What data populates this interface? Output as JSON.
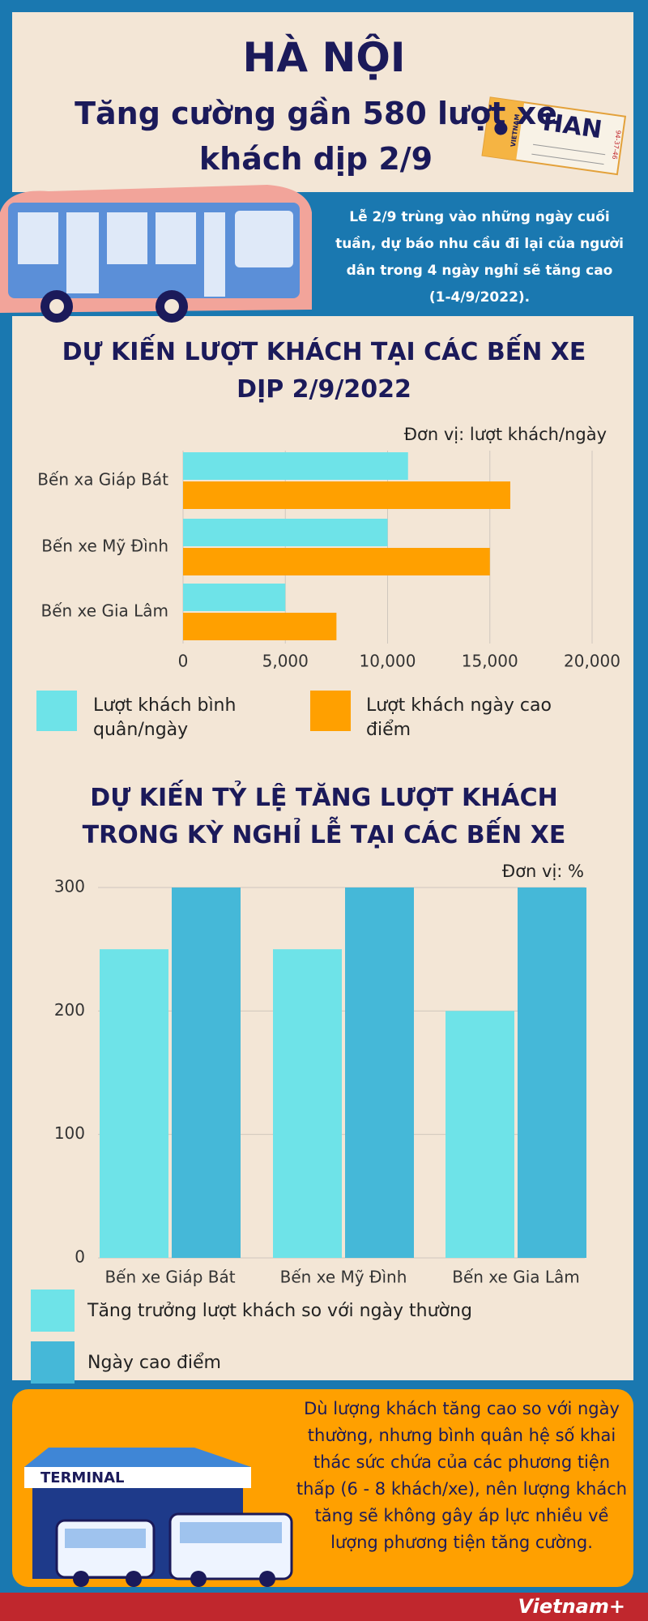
{
  "header": {
    "title": "HÀ NỘI",
    "subtitle": "Tăng cường gần 580 lượt xe khách dịp 2/9",
    "ticket_code": "HAN",
    "ticket_country": "VIETNAM",
    "ticket_number": "94-37-46"
  },
  "intro": "Lễ 2/9 trùng vào những ngày cuối tuần, dự báo nhu cầu đi lại của người dân trong 4 ngày nghỉ sẽ tăng cao (1-4/9/2022).",
  "chart_data": [
    {
      "type": "barh",
      "title": "DỰ KIẾN LƯỢT KHÁCH TẠI CÁC BẾN XE DỊP 2/9/2022",
      "unit": "Đơn vị: lượt khách/ngày",
      "categories": [
        "Bến xa Giáp Bát",
        "Bến xe Mỹ Đình",
        "Bến xe Gia Lâm"
      ],
      "series": [
        {
          "name": "Lượt khách bình quân/ngày",
          "color": "#6ee3e8",
          "values": [
            11000,
            10000,
            5000
          ]
        },
        {
          "name": "Lượt khách ngày cao điểm",
          "color": "#ffa000",
          "values": [
            16000,
            15000,
            7500
          ]
        }
      ],
      "xlim": [
        0,
        20000
      ],
      "xticks": [
        0,
        {
          "value": 5000,
          "label": "5,000"
        },
        {
          "value": 10000,
          "label": "10,000"
        },
        {
          "value": 15000,
          "label": "15,000"
        },
        {
          "value": 20000,
          "label": "20,000"
        }
      ],
      "grid": true
    },
    {
      "type": "bar",
      "title": "DỰ KIẾN TỶ LỆ TĂNG LƯỢT KHÁCH TRONG KỲ NGHỈ LỄ TẠI CÁC BẾN XE",
      "unit": "Đơn vị: %",
      "categories": [
        "Bến xe Giáp Bát",
        "Bến xe Mỹ Đình",
        "Bến xe Gia Lâm"
      ],
      "series": [
        {
          "name": "Tăng trưởng lượt khách so với ngày thường",
          "color": "#6ee3e8",
          "values": [
            250,
            250,
            200
          ]
        },
        {
          "name": "Ngày cao điểm",
          "color": "#45b8d8",
          "values": [
            300,
            300,
            300
          ]
        }
      ],
      "ylim": [
        0,
        300
      ],
      "yticks": [
        0,
        100,
        200,
        300
      ],
      "grid": true
    }
  ],
  "note": "Dù lượng khách tăng cao so với ngày thường, nhưng bình quân hệ số khai thác sức chứa của các phương tiện thấp (6 - 8 khách/xe), nên lượng khách tăng sẽ không gây áp lực nhiều về lượng phương tiện tăng cường.",
  "terminal_label": "TERMINAL",
  "brand": "Vietnam+"
}
